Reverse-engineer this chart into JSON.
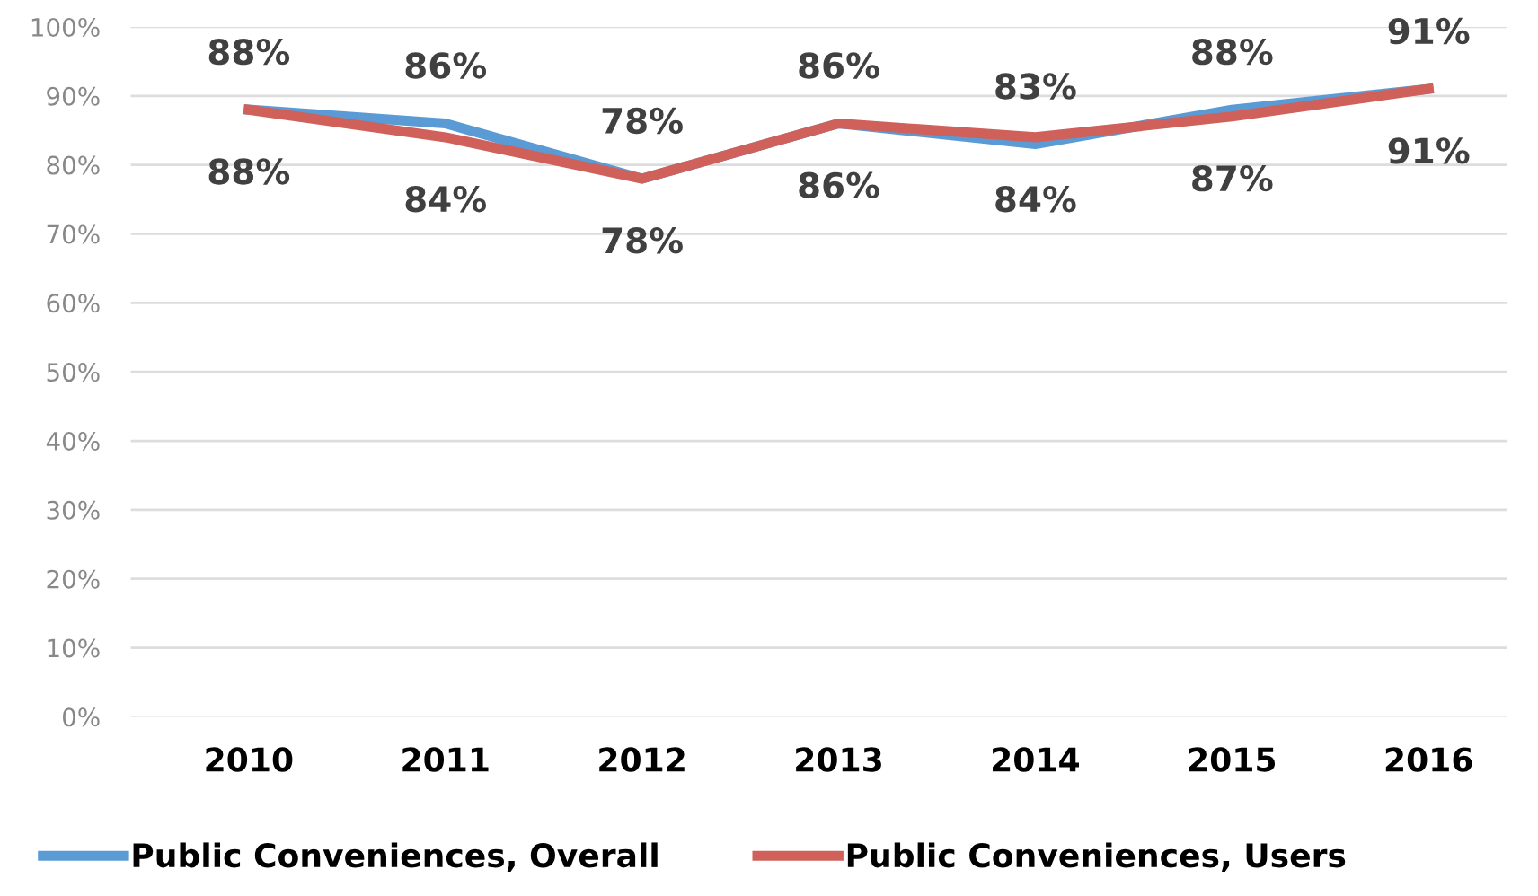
{
  "chart_data": {
    "type": "line",
    "categories": [
      "2010",
      "2011",
      "2012",
      "2013",
      "2014",
      "2015",
      "2016"
    ],
    "series": [
      {
        "name": "Public Conveniences, Overall",
        "color": "#5b9bd5",
        "values": [
          88,
          86,
          78,
          86,
          83,
          88,
          91
        ],
        "value_labels": [
          "88%",
          "86%",
          "78%",
          "86%",
          "83%",
          "88%",
          "91%"
        ]
      },
      {
        "name": "Public Conveniences, Users",
        "color": "#d0605a",
        "values": [
          88,
          84,
          78,
          86,
          84,
          87,
          91
        ],
        "value_labels": [
          "88%",
          "84%",
          "78%",
          "86%",
          "84%",
          "87%",
          "91%"
        ]
      }
    ],
    "ylim": [
      0,
      100
    ],
    "yticks": [
      {
        "value": 0,
        "label": "0%"
      },
      {
        "value": 10,
        "label": "10%"
      },
      {
        "value": 20,
        "label": "20%"
      },
      {
        "value": 30,
        "label": "30%"
      },
      {
        "value": 40,
        "label": "40%"
      },
      {
        "value": 50,
        "label": "50%"
      },
      {
        "value": 60,
        "label": "60%"
      },
      {
        "value": 70,
        "label": "70%"
      },
      {
        "value": 80,
        "label": "80%"
      },
      {
        "value": 90,
        "label": "90%"
      },
      {
        "value": 100,
        "label": "100%"
      }
    ],
    "grid": "y",
    "legend": "bottom",
    "marker": "none",
    "line_style": "solid"
  }
}
